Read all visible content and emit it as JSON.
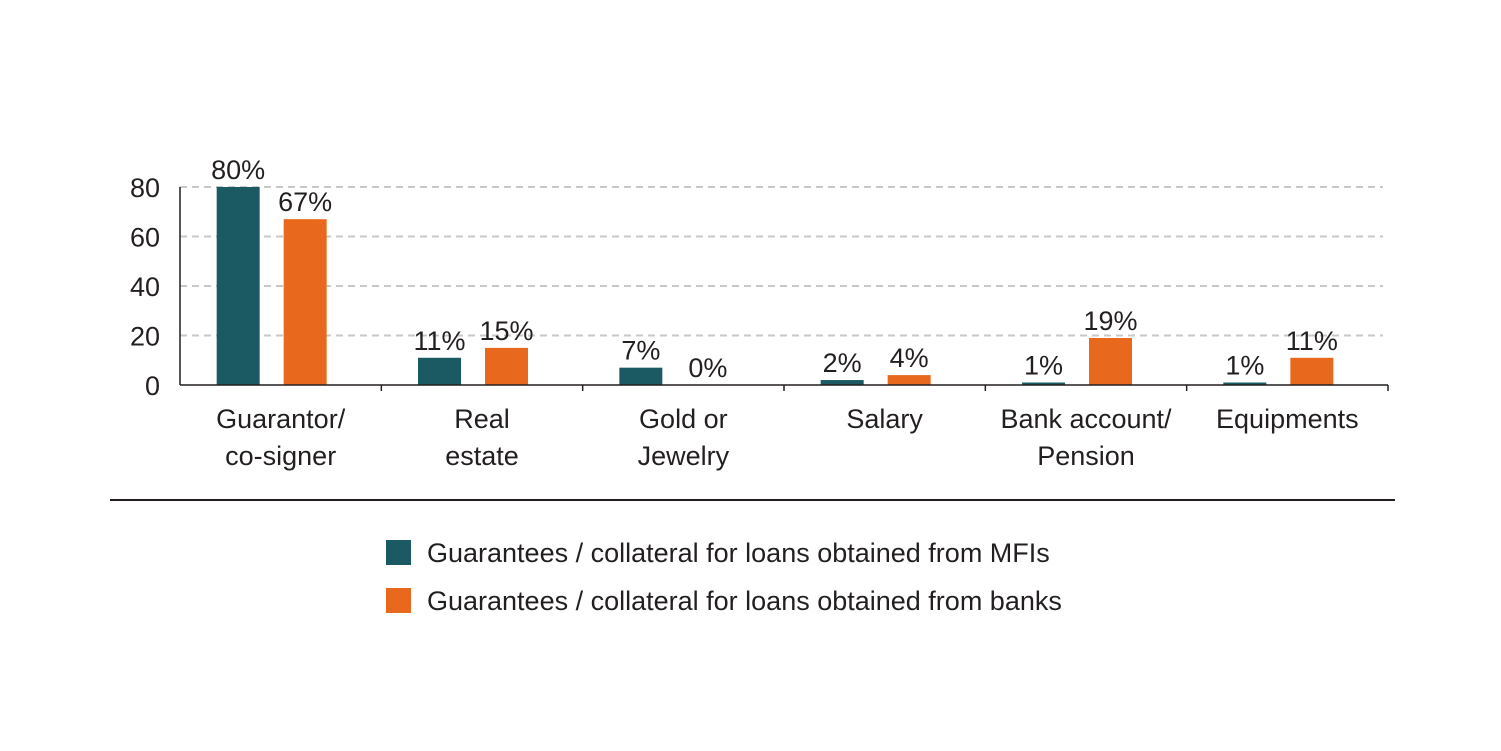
{
  "chart_data": {
    "type": "bar",
    "title": "",
    "xlabel": "",
    "ylabel": "",
    "ylim": [
      0,
      80
    ],
    "yticks": [
      0,
      20,
      40,
      60,
      80
    ],
    "grid": true,
    "legend_position": "bottom",
    "categories": [
      [
        "Guarantor/",
        "co-signer"
      ],
      [
        "Real",
        "estate"
      ],
      [
        "Gold or",
        "Jewelry"
      ],
      [
        "Salary"
      ],
      [
        "Bank account/",
        "Pension"
      ],
      [
        "Equipments"
      ]
    ],
    "series": [
      {
        "name": "Guarantees / collateral for loans obtained from MFIs",
        "color": "#1b5a63",
        "values": [
          80,
          11,
          7,
          2,
          1,
          1
        ],
        "labels": [
          "80%",
          "11%",
          "7%",
          "2%",
          "1%",
          "1%"
        ]
      },
      {
        "name": "Guarantees / collateral for loans obtained from banks",
        "color": "#e8691e",
        "values": [
          67,
          15,
          0,
          4,
          19,
          11
        ],
        "labels": [
          "67%",
          "15%",
          "0%",
          "4%",
          "19%",
          "11%"
        ]
      }
    ]
  }
}
